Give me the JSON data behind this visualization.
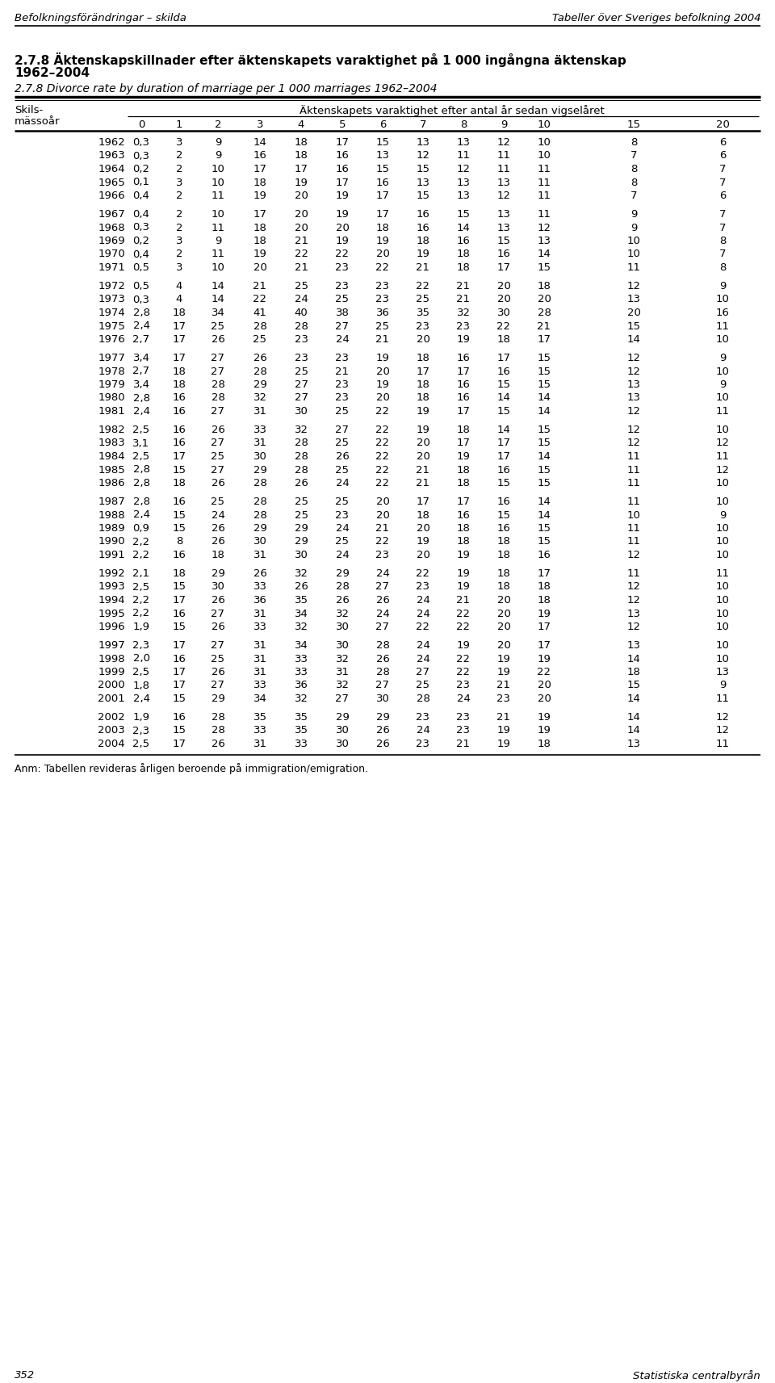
{
  "header_left": "Befolkningsförändringar – skilda",
  "header_right": "Tabeller över Sveriges befolkning 2004",
  "title_bold_line1": "2.7.8 Äktenskapskillnader efter äktenskapets varaktighet på 1 000 ingångna äktenskap",
  "title_bold_line2": "1962–2004",
  "title_italic": "2.7.8 Divorce rate by duration of marriage per 1 000 marriages 1962–2004",
  "col_header_main": "Äktenskapets varaktighet efter antal år sedan vigselåret",
  "col_header_left1": "Skils-",
  "col_header_left2": "mässoår",
  "columns": [
    "0",
    "1",
    "2",
    "3",
    "4",
    "5",
    "6",
    "7",
    "8",
    "9",
    "10",
    "15",
    "20"
  ],
  "footer": "Anm: Tabellen revideras årligen beroende på immigration/emigration.",
  "footer_bottom_left": "352",
  "footer_bottom_right": "Statistiska centralbyrån",
  "rows": [
    [
      "1962",
      "0,3",
      "3",
      "9",
      "14",
      "18",
      "17",
      "15",
      "13",
      "13",
      "12",
      "10",
      "8",
      "6"
    ],
    [
      "1963",
      "0,3",
      "2",
      "9",
      "16",
      "18",
      "16",
      "13",
      "12",
      "11",
      "11",
      "10",
      "7",
      "6"
    ],
    [
      "1964",
      "0,2",
      "2",
      "10",
      "17",
      "17",
      "16",
      "15",
      "15",
      "12",
      "11",
      "11",
      "8",
      "7"
    ],
    [
      "1965",
      "0,1",
      "3",
      "10",
      "18",
      "19",
      "17",
      "16",
      "13",
      "13",
      "13",
      "11",
      "8",
      "7"
    ],
    [
      "1966",
      "0,4",
      "2",
      "11",
      "19",
      "20",
      "19",
      "17",
      "15",
      "13",
      "12",
      "11",
      "7",
      "6"
    ],
    [
      "1967",
      "0,4",
      "2",
      "10",
      "17",
      "20",
      "19",
      "17",
      "16",
      "15",
      "13",
      "11",
      "9",
      "7"
    ],
    [
      "1968",
      "0,3",
      "2",
      "11",
      "18",
      "20",
      "20",
      "18",
      "16",
      "14",
      "13",
      "12",
      "9",
      "7"
    ],
    [
      "1969",
      "0,2",
      "3",
      "9",
      "18",
      "21",
      "19",
      "19",
      "18",
      "16",
      "15",
      "13",
      "10",
      "8"
    ],
    [
      "1970",
      "0,4",
      "2",
      "11",
      "19",
      "22",
      "22",
      "20",
      "19",
      "18",
      "16",
      "14",
      "10",
      "7"
    ],
    [
      "1971",
      "0,5",
      "3",
      "10",
      "20",
      "21",
      "23",
      "22",
      "21",
      "18",
      "17",
      "15",
      "11",
      "8"
    ],
    [
      "1972",
      "0,5",
      "4",
      "14",
      "21",
      "25",
      "23",
      "23",
      "22",
      "21",
      "20",
      "18",
      "12",
      "9"
    ],
    [
      "1973",
      "0,3",
      "4",
      "14",
      "22",
      "24",
      "25",
      "23",
      "25",
      "21",
      "20",
      "20",
      "13",
      "10"
    ],
    [
      "1974",
      "2,8",
      "18",
      "34",
      "41",
      "40",
      "38",
      "36",
      "35",
      "32",
      "30",
      "28",
      "20",
      "16"
    ],
    [
      "1975",
      "2,4",
      "17",
      "25",
      "28",
      "28",
      "27",
      "25",
      "23",
      "23",
      "22",
      "21",
      "15",
      "11"
    ],
    [
      "1976",
      "2,7",
      "17",
      "26",
      "25",
      "23",
      "24",
      "21",
      "20",
      "19",
      "18",
      "17",
      "14",
      "10"
    ],
    [
      "1977",
      "3,4",
      "17",
      "27",
      "26",
      "23",
      "23",
      "19",
      "18",
      "16",
      "17",
      "15",
      "12",
      "9"
    ],
    [
      "1978",
      "2,7",
      "18",
      "27",
      "28",
      "25",
      "21",
      "20",
      "17",
      "17",
      "16",
      "15",
      "12",
      "10"
    ],
    [
      "1979",
      "3,4",
      "18",
      "28",
      "29",
      "27",
      "23",
      "19",
      "18",
      "16",
      "15",
      "15",
      "13",
      "9"
    ],
    [
      "1980",
      "2,8",
      "16",
      "28",
      "32",
      "27",
      "23",
      "20",
      "18",
      "16",
      "14",
      "14",
      "13",
      "10"
    ],
    [
      "1981",
      "2,4",
      "16",
      "27",
      "31",
      "30",
      "25",
      "22",
      "19",
      "17",
      "15",
      "14",
      "12",
      "11"
    ],
    [
      "1982",
      "2,5",
      "16",
      "26",
      "33",
      "32",
      "27",
      "22",
      "19",
      "18",
      "14",
      "15",
      "12",
      "10"
    ],
    [
      "1983",
      "3,1",
      "16",
      "27",
      "31",
      "28",
      "25",
      "22",
      "20",
      "17",
      "17",
      "15",
      "12",
      "12"
    ],
    [
      "1984",
      "2,5",
      "17",
      "25",
      "30",
      "28",
      "26",
      "22",
      "20",
      "19",
      "17",
      "14",
      "11",
      "11"
    ],
    [
      "1985",
      "2,8",
      "15",
      "27",
      "29",
      "28",
      "25",
      "22",
      "21",
      "18",
      "16",
      "15",
      "11",
      "12"
    ],
    [
      "1986",
      "2,8",
      "18",
      "26",
      "28",
      "26",
      "24",
      "22",
      "21",
      "18",
      "15",
      "15",
      "11",
      "10"
    ],
    [
      "1987",
      "2,8",
      "16",
      "25",
      "28",
      "25",
      "25",
      "20",
      "17",
      "17",
      "16",
      "14",
      "11",
      "10"
    ],
    [
      "1988",
      "2,4",
      "15",
      "24",
      "28",
      "25",
      "23",
      "20",
      "18",
      "16",
      "15",
      "14",
      "10",
      "9"
    ],
    [
      "1989",
      "0,9",
      "15",
      "26",
      "29",
      "29",
      "24",
      "21",
      "20",
      "18",
      "16",
      "15",
      "11",
      "10"
    ],
    [
      "1990",
      "2,2",
      "8",
      "26",
      "30",
      "29",
      "25",
      "22",
      "19",
      "18",
      "18",
      "15",
      "11",
      "10"
    ],
    [
      "1991",
      "2,2",
      "16",
      "18",
      "31",
      "30",
      "24",
      "23",
      "20",
      "19",
      "18",
      "16",
      "12",
      "10"
    ],
    [
      "1992",
      "2,1",
      "18",
      "29",
      "26",
      "32",
      "29",
      "24",
      "22",
      "19",
      "18",
      "17",
      "11",
      "11"
    ],
    [
      "1993",
      "2,5",
      "15",
      "30",
      "33",
      "26",
      "28",
      "27",
      "23",
      "19",
      "18",
      "18",
      "12",
      "10"
    ],
    [
      "1994",
      "2,2",
      "17",
      "26",
      "36",
      "35",
      "26",
      "26",
      "24",
      "21",
      "20",
      "18",
      "12",
      "10"
    ],
    [
      "1995",
      "2,2",
      "16",
      "27",
      "31",
      "34",
      "32",
      "24",
      "24",
      "22",
      "20",
      "19",
      "13",
      "10"
    ],
    [
      "1996",
      "1,9",
      "15",
      "26",
      "33",
      "32",
      "30",
      "27",
      "22",
      "22",
      "20",
      "17",
      "12",
      "10"
    ],
    [
      "1997",
      "2,3",
      "17",
      "27",
      "31",
      "34",
      "30",
      "28",
      "24",
      "19",
      "20",
      "17",
      "13",
      "10"
    ],
    [
      "1998",
      "2,0",
      "16",
      "25",
      "31",
      "33",
      "32",
      "26",
      "24",
      "22",
      "19",
      "19",
      "14",
      "10"
    ],
    [
      "1999",
      "2,5",
      "17",
      "26",
      "31",
      "33",
      "31",
      "28",
      "27",
      "22",
      "19",
      "22",
      "18",
      "13"
    ],
    [
      "2000",
      "1,8",
      "17",
      "27",
      "33",
      "36",
      "32",
      "27",
      "25",
      "23",
      "21",
      "20",
      "15",
      "9"
    ],
    [
      "2001",
      "2,4",
      "15",
      "29",
      "34",
      "32",
      "27",
      "30",
      "28",
      "24",
      "23",
      "20",
      "14",
      "11"
    ],
    [
      "2002",
      "1,9",
      "16",
      "28",
      "35",
      "35",
      "29",
      "29",
      "23",
      "23",
      "21",
      "19",
      "14",
      "12"
    ],
    [
      "2003",
      "2,3",
      "15",
      "28",
      "33",
      "35",
      "30",
      "26",
      "24",
      "23",
      "19",
      "19",
      "14",
      "12"
    ],
    [
      "2004",
      "2,5",
      "17",
      "26",
      "31",
      "33",
      "30",
      "26",
      "23",
      "21",
      "19",
      "18",
      "13",
      "11"
    ]
  ],
  "group_sizes": [
    5,
    5,
    5,
    5,
    5,
    5,
    5,
    5,
    3
  ],
  "bg_color": "#ffffff"
}
